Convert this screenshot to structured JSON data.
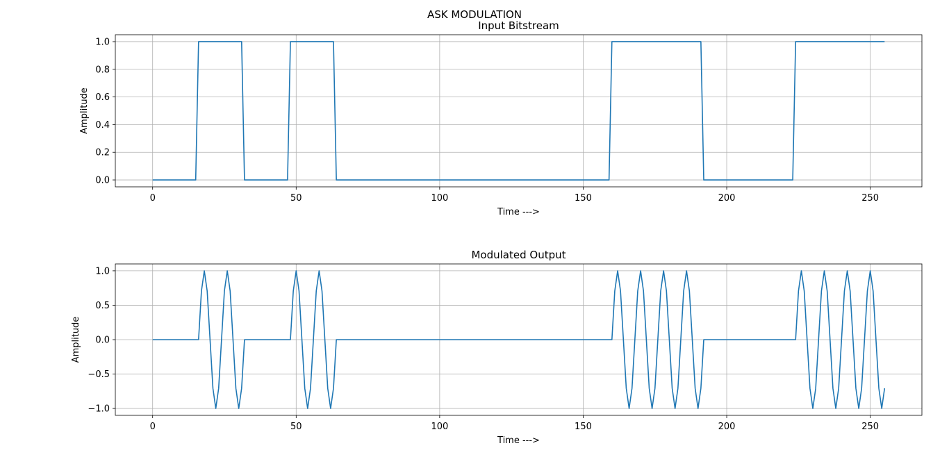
{
  "figure": {
    "suptitle": "ASK MODULATION"
  },
  "colors": {
    "line": "#1f77b4",
    "grid": "#b0b0b0",
    "axes": "#000000",
    "background": "#ffffff"
  },
  "chart_data": [
    {
      "type": "line",
      "title": "Input Bitstream",
      "xlabel": "Time --->",
      "ylabel": "Amplitude",
      "xlim": [
        -13,
        268
      ],
      "ylim": [
        -0.05,
        1.05
      ],
      "xticks": [
        0,
        50,
        100,
        150,
        200,
        250
      ],
      "xtick_labels": [
        "0",
        "50",
        "100",
        "150",
        "200",
        "250"
      ],
      "yticks": [
        0,
        0.2,
        0.4,
        0.6,
        0.8,
        1.0
      ],
      "ytick_labels": [
        "0.0",
        "0.2",
        "0.4",
        "0.6",
        "0.8",
        "1.0"
      ],
      "grid": true,
      "bits": [
        0,
        1,
        0,
        1,
        0,
        0,
        0,
        0,
        0,
        0,
        1,
        1,
        0,
        0,
        1,
        1
      ],
      "samples_per_bit": 16,
      "n_samples": 256,
      "series": [
        {
          "values": []
        }
      ]
    },
    {
      "type": "line",
      "title": "Modulated Output",
      "xlabel": "Time --->",
      "ylabel": "Amplitude",
      "xlim": [
        -13,
        268
      ],
      "ylim": [
        -1.1,
        1.1
      ],
      "xticks": [
        0,
        50,
        100,
        150,
        200,
        250
      ],
      "xtick_labels": [
        "0",
        "50",
        "100",
        "150",
        "200",
        "250"
      ],
      "yticks": [
        -1.0,
        -0.5,
        0.0,
        0.5,
        1.0
      ],
      "ytick_labels": [
        "−1.0",
        "−0.5",
        "0.0",
        "0.5",
        "1.0"
      ],
      "grid": true,
      "carrier_period_samples": 8,
      "series": [
        {
          "values": []
        }
      ]
    }
  ]
}
